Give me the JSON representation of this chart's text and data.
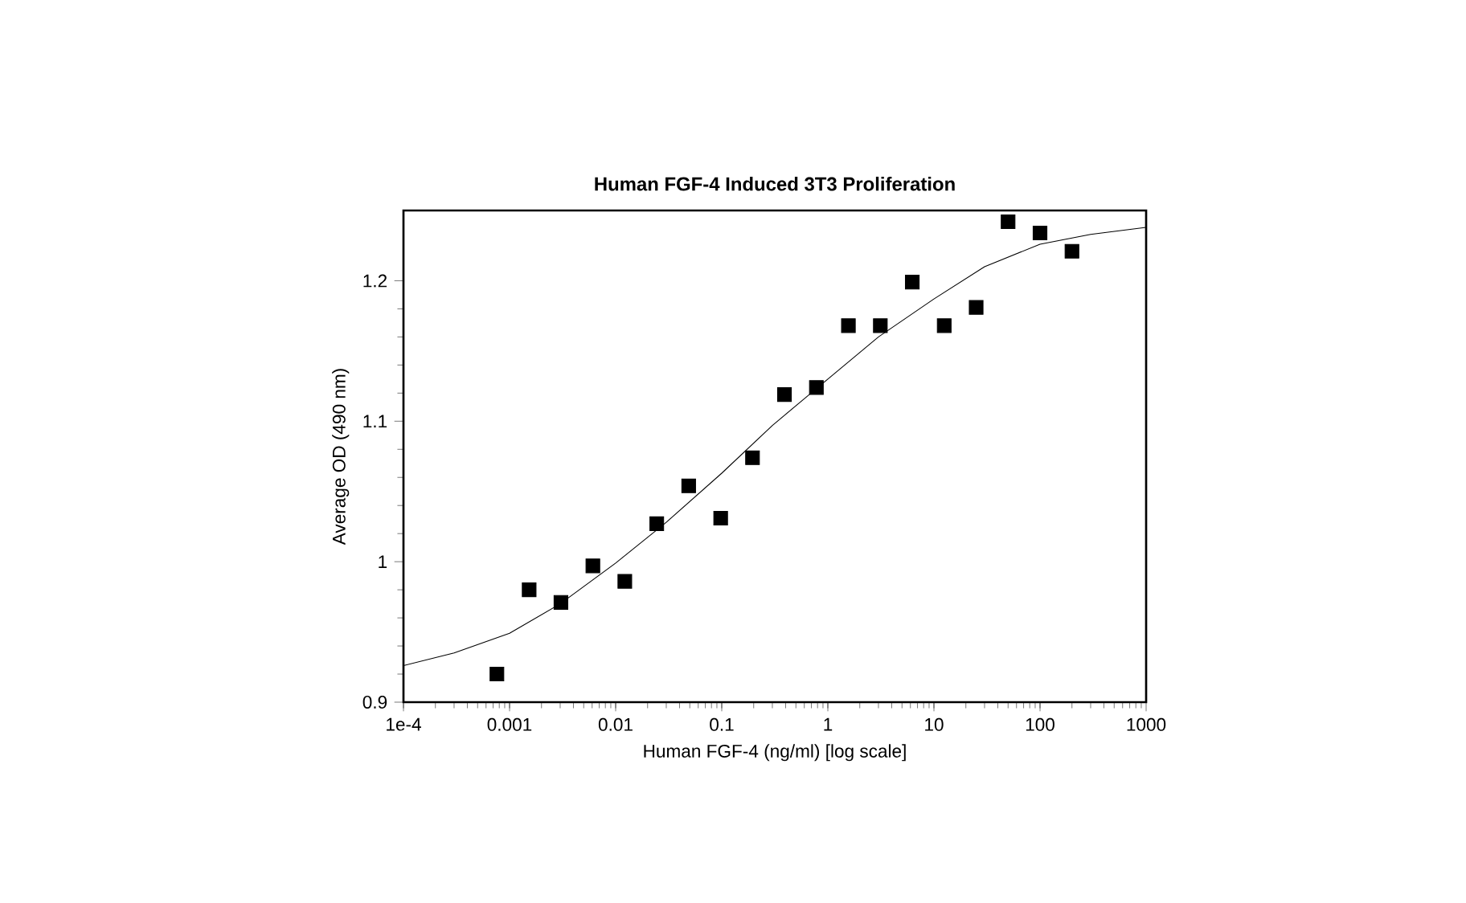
{
  "chart_data": {
    "type": "scatter",
    "title": "Human FGF-4 Induced 3T3 Proliferation",
    "xlabel": "Human FGF-4 (ng/ml) [log scale]",
    "ylabel": "Average OD (490 nm)",
    "log": "x",
    "xlim": [
      0.0001,
      1000
    ],
    "ylim": [
      0.9,
      1.25
    ],
    "xticks": [
      {
        "value": 0.0001,
        "label": "1e-4"
      },
      0.001,
      0.01,
      0.1,
      1,
      10,
      100,
      1000
    ],
    "yticks": [
      0.9,
      1,
      1.1,
      1.2
    ],
    "marker": "square",
    "series": [
      {
        "color": "#000000",
        "x": [
          0.00076,
          0.00153,
          0.00305,
          0.0061,
          0.0122,
          0.0244,
          0.0488,
          0.0977,
          0.195,
          0.39,
          0.78,
          1.5625,
          3.125,
          6.25,
          12.5,
          25,
          50,
          100,
          200
        ],
        "values": [
          0.92,
          0.98,
          0.971,
          0.997,
          0.986,
          1.027,
          1.054,
          1.031,
          1.074,
          1.119,
          1.124,
          1.168,
          1.168,
          1.199,
          1.168,
          1.181,
          1.242,
          1.234,
          1.221
        ]
      },
      {
        "type": "line",
        "color": "#000000",
        "line_style": "solid",
        "marker": "none",
        "x": [
          0.0001,
          0.0003,
          0.001,
          0.003,
          0.01,
          0.03,
          0.1,
          0.3,
          1,
          3,
          10,
          30,
          100,
          300,
          1000
        ],
        "values": [
          0.926,
          0.935,
          0.949,
          0.97,
          0.999,
          1.028,
          1.063,
          1.097,
          1.13,
          1.16,
          1.187,
          1.21,
          1.226,
          1.233,
          1.238
        ]
      }
    ]
  }
}
